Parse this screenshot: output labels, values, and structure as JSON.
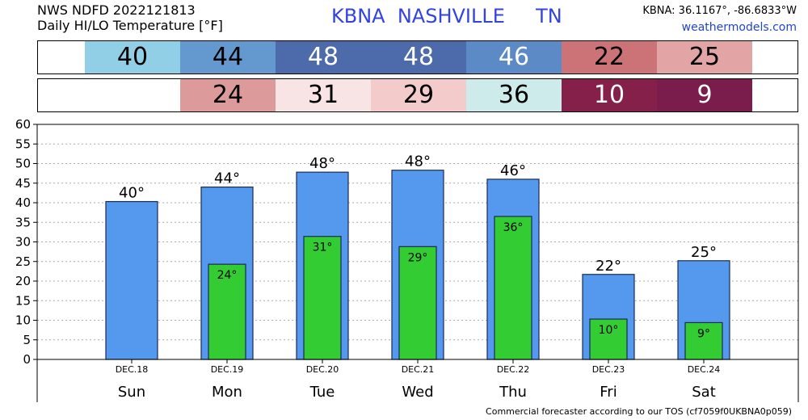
{
  "header": {
    "line1": "NWS NDFD 2022121813",
    "line2": "Daily HI/LO Temperature [°F]",
    "station": "KBNA",
    "city": "NASHVILLE",
    "state": "TN",
    "coords": "KBNA: 36.1167°, -86.6833°W",
    "site": "weathermodels.com"
  },
  "hi_strip": [
    {
      "value": "40",
      "color": "#91cfe7",
      "text_color": "#000000"
    },
    {
      "value": "44",
      "color": "#6399cf",
      "text_color": "#000000"
    },
    {
      "value": "48",
      "color": "#4d6aab",
      "text_color": "#ffffff"
    },
    {
      "value": "48",
      "color": "#4d6aab",
      "text_color": "#ffffff"
    },
    {
      "value": "46",
      "color": "#5b8ac6",
      "text_color": "#ffffff"
    },
    {
      "value": "22",
      "color": "#cc7377",
      "text_color": "#000000"
    },
    {
      "value": "25",
      "color": "#e3a4a6",
      "text_color": "#000000"
    }
  ],
  "lo_strip": [
    {
      "value": "",
      "color": "#ffffff",
      "text_color": "#000000"
    },
    {
      "value": "24",
      "color": "#dc9a9b",
      "text_color": "#000000"
    },
    {
      "value": "31",
      "color": "#f8e4e4",
      "text_color": "#000000"
    },
    {
      "value": "29",
      "color": "#f3cbcb",
      "text_color": "#000000"
    },
    {
      "value": "36",
      "color": "#cdebea",
      "text_color": "#000000"
    },
    {
      "value": "10",
      "color": "#842049",
      "text_color": "#ffffff"
    },
    {
      "value": "9",
      "color": "#7a1d4c",
      "text_color": "#ffffff"
    }
  ],
  "chart_data": {
    "type": "bar",
    "categories": [
      "Sun",
      "Mon",
      "Tue",
      "Wed",
      "Thu",
      "Fri",
      "Sat"
    ],
    "dates": [
      "DEC.18",
      "DEC.19",
      "DEC.20",
      "DEC.21",
      "DEC.22",
      "DEC.23",
      "DEC.24"
    ],
    "series": [
      {
        "values": [
          40.3,
          44,
          47.8,
          48.3,
          46,
          21.7,
          25.2
        ],
        "labels": [
          "40°",
          "44°",
          "48°",
          "48°",
          "46°",
          "22°",
          "25°"
        ],
        "color": "#5599ee"
      },
      {
        "values": [
          null,
          24.3,
          31.4,
          28.8,
          36.5,
          10.3,
          9.4
        ],
        "labels": [
          "",
          "24°",
          "31°",
          "29°",
          "36°",
          "10°",
          "9°"
        ],
        "color": "#33cc33"
      }
    ],
    "ylim": [
      0,
      60
    ],
    "yticks": [
      0,
      5,
      10,
      15,
      20,
      25,
      30,
      35,
      40,
      45,
      50,
      55,
      60
    ],
    "grid": true
  },
  "footer": "Commercial forecaster according to our TOS (cf7059f0UKBNA0p059)"
}
